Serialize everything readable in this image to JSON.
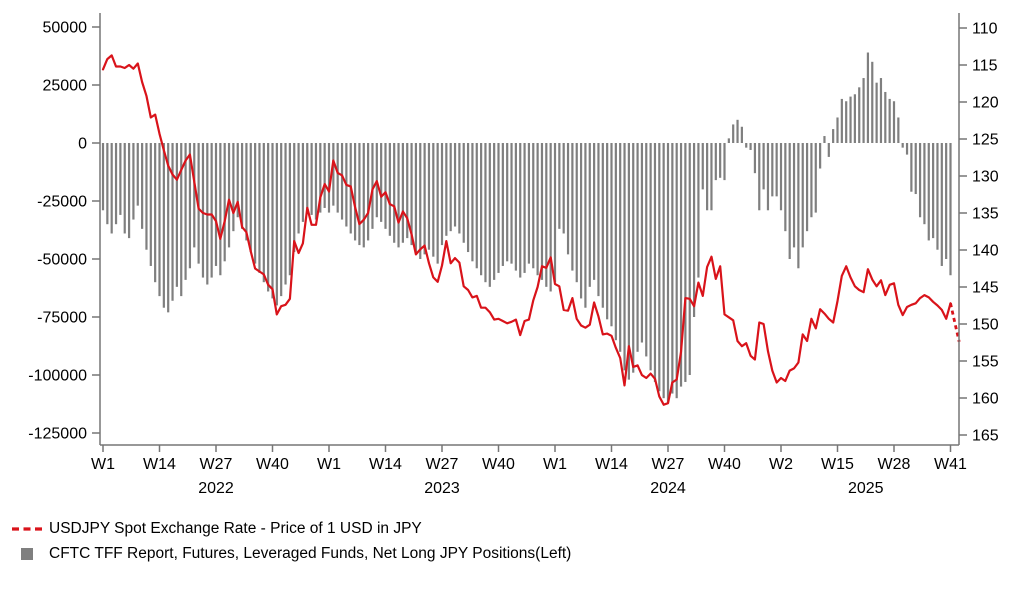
{
  "chart_data": {
    "type": "combo",
    "title": "",
    "description_visible": "Weekly bar and line chart, 2022 W1 through 2025 W41",
    "left_axis": {
      "label": "",
      "min": -125000,
      "max": 50000,
      "step": 25000,
      "tick_labels": [
        "50000",
        "25000",
        "0",
        "-25000",
        "-50000",
        "-75000",
        "-100000",
        "-125000"
      ]
    },
    "right_axis": {
      "label": "",
      "min": 110,
      "max": 165,
      "step": 5,
      "inverted": true,
      "tick_labels": [
        "110",
        "115",
        "120",
        "125",
        "130",
        "135",
        "140",
        "145",
        "150",
        "155",
        "160",
        "165"
      ]
    },
    "x_axis": {
      "tick_labels": [
        "W1",
        "W14",
        "W27",
        "W40",
        "W1",
        "W14",
        "W27",
        "W40",
        "W1",
        "W14",
        "W27",
        "W40",
        "W2",
        "W15",
        "W28",
        "W41"
      ],
      "tick_point_indices": [
        0,
        13,
        26,
        39,
        52,
        65,
        78,
        91,
        104,
        117,
        130,
        143,
        156,
        169,
        182,
        195
      ],
      "year_labels": [
        {
          "text": "2022",
          "anchor_tick": 2
        },
        {
          "text": "2023",
          "anchor_tick": 6
        },
        {
          "text": "2024",
          "anchor_tick": 10
        },
        {
          "text": "2025",
          "anchor_tick": 13.5
        }
      ]
    },
    "grid": false,
    "legend_position": "bottom-left",
    "series": [
      {
        "name": "CFTC TFF Report, Futures, Leveraged Funds, Net Long JPY Positions(Left)",
        "type": "bar",
        "axis": "left",
        "color": "#7f7f7f",
        "values": [
          -29000,
          -35000,
          -39000,
          -35000,
          -31000,
          -39000,
          -41000,
          -33000,
          -27000,
          -37000,
          -46000,
          -53000,
          -60000,
          -66000,
          -71000,
          -73000,
          -68000,
          -62000,
          -66000,
          -59000,
          -54000,
          -45000,
          -52000,
          -58000,
          -61000,
          -58000,
          -53000,
          -57000,
          -51000,
          -45000,
          -38000,
          -32000,
          -37000,
          -42000,
          -47000,
          -52000,
          -56000,
          -60000,
          -64000,
          -67000,
          -70000,
          -66000,
          -61000,
          -57000,
          -47000,
          -39000,
          -34000,
          -29000,
          -31000,
          -33000,
          -30000,
          -28000,
          -30000,
          -27000,
          -30000,
          -33000,
          -36000,
          -39000,
          -42000,
          -44000,
          -45000,
          -42000,
          -37000,
          -32000,
          -34000,
          -37000,
          -40000,
          -43000,
          -45000,
          -43000,
          -41000,
          -44000,
          -47000,
          -50000,
          -48000,
          -46000,
          -49000,
          -52000,
          -44000,
          -40000,
          -38000,
          -36000,
          -39000,
          -43000,
          -47000,
          -51000,
          -54000,
          -57000,
          -60000,
          -62000,
          -59000,
          -56000,
          -53000,
          -51000,
          -52000,
          -55000,
          -58000,
          -56000,
          -52000,
          -54000,
          -57000,
          -59000,
          -62000,
          -64000,
          -60000,
          -37000,
          -39000,
          -48000,
          -55000,
          -60000,
          -67000,
          -71000,
          -62000,
          -59000,
          -66000,
          -71000,
          -76000,
          -79000,
          -85000,
          -90000,
          -98000,
          -102000,
          -99000,
          -90000,
          -86000,
          -92000,
          -98000,
          -103000,
          -107000,
          -110000,
          -112000,
          -108000,
          -110000,
          -105000,
          -103000,
          -100000,
          -75000,
          -58000,
          -20000,
          -29000,
          -29000,
          -16000,
          -15000,
          -16000,
          2000,
          8000,
          10000,
          7000,
          -2000,
          -3000,
          -13000,
          -29000,
          -20000,
          -29000,
          -23000,
          -23000,
          -29000,
          -38000,
          -50000,
          -45000,
          -54000,
          -45000,
          -38000,
          -32000,
          -30000,
          -11000,
          3000,
          -6000,
          6000,
          11000,
          19000,
          18000,
          20000,
          21000,
          24000,
          28000,
          39000,
          35000,
          26000,
          28000,
          22000,
          19000,
          18000,
          11000,
          -2000,
          -5000,
          -21000,
          -22000,
          -32000,
          -35000,
          -42000,
          -41000,
          -46000,
          -53000,
          -50000,
          -57000,
          null,
          null
        ]
      },
      {
        "name": "USDJPY Spot Exchange Rate - Price of 1 USD in JPY",
        "type": "line",
        "axis": "right",
        "color": "#d9131a",
        "dashed_from_index": 195,
        "values": [
          115.6,
          114.2,
          113.7,
          115.2,
          115.2,
          115.4,
          115.0,
          115.5,
          114.8,
          117.3,
          119.2,
          122.1,
          121.7,
          124.3,
          126.5,
          128.6,
          129.8,
          130.5,
          129.2,
          127.9,
          127.1,
          130.8,
          134.4,
          135.0,
          135.2,
          135.2,
          136.1,
          138.5,
          136.1,
          133.2,
          135.0,
          133.5,
          136.9,
          137.6,
          140.2,
          142.5,
          142.9,
          143.3,
          144.7,
          145.3,
          148.7,
          147.6,
          147.4,
          146.6,
          138.8,
          140.4,
          139.1,
          134.3,
          136.6,
          136.6,
          132.9,
          131.1,
          132.1,
          127.9,
          129.6,
          129.9,
          131.2,
          131.4,
          134.2,
          136.5,
          135.9,
          135.0,
          131.8,
          130.7,
          132.8,
          132.2,
          133.8,
          134.1,
          136.3,
          134.8,
          135.7,
          137.9,
          140.6,
          139.9,
          139.4,
          141.8,
          143.7,
          144.3,
          142.1,
          138.8,
          141.8,
          141.1,
          141.7,
          144.9,
          145.4,
          146.4,
          146.2,
          147.8,
          147.8,
          148.4,
          149.4,
          149.3,
          149.6,
          149.9,
          149.7,
          149.4,
          151.5,
          149.6,
          149.4,
          146.8,
          145.0,
          142.2,
          142.4,
          141.0,
          144.6,
          144.9,
          148.1,
          148.2,
          146.5,
          149.3,
          150.2,
          150.5,
          150.1,
          147.1,
          149.0,
          151.4,
          151.3,
          151.6,
          153.2,
          154.6,
          158.3,
          153.0,
          155.8,
          155.6,
          156.9,
          157.3,
          156.7,
          157.4,
          159.8,
          160.9,
          160.7,
          157.9,
          157.5,
          153.8,
          146.5,
          146.6,
          147.6,
          144.4,
          146.2,
          142.3,
          140.9,
          143.9,
          142.2,
          148.7,
          149.1,
          149.5,
          152.3,
          153.0,
          152.6,
          154.3,
          154.8,
          149.8,
          150.0,
          153.7,
          156.3,
          157.9,
          157.3,
          157.7,
          156.3,
          156.0,
          155.2,
          151.4,
          152.3,
          149.3,
          150.6,
          148.0,
          148.6,
          149.3,
          149.8,
          146.9,
          143.5,
          142.2,
          143.7,
          144.9,
          145.4,
          145.7,
          142.6,
          144.0,
          144.9,
          144.1,
          146.1,
          144.7,
          144.5,
          147.4,
          148.8,
          147.7,
          147.4,
          147.2,
          146.5,
          146.1,
          146.4,
          147.0,
          147.5,
          148.1,
          149.3,
          147.2,
          149.8,
          152.4
        ]
      }
    ]
  },
  "colors": {
    "line_red": "#d9131a",
    "bar_gray": "#7f7f7f",
    "axis_gray": "#767676",
    "text_black": "#000000",
    "background": "#ffffff"
  },
  "legend": {
    "items": [
      {
        "label": "USDJPY Spot Exchange Rate - Price of 1 USD in JPY",
        "swatch": "dashed-line",
        "color": "#d9131a"
      },
      {
        "label": "CFTC TFF Report, Futures, Leveraged Funds, Net Long JPY Positions(Left)",
        "swatch": "square",
        "color": "#7f7f7f"
      }
    ]
  }
}
